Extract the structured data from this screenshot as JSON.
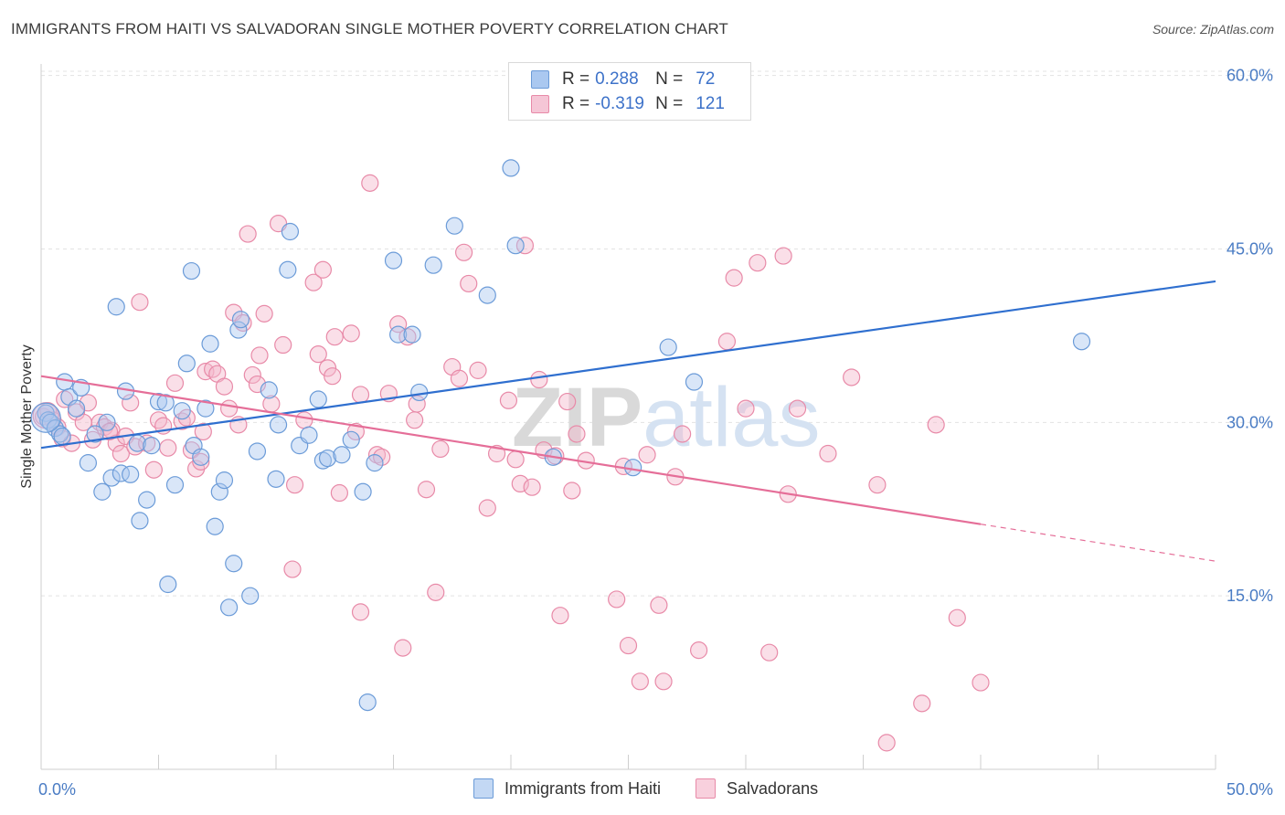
{
  "title": "IMMIGRANTS FROM HAITI VS SALVADORAN SINGLE MOTHER POVERTY CORRELATION CHART",
  "source": "Source: ZipAtlas.com",
  "watermark": "ZIPatlas",
  "legend": {
    "rows": [
      {
        "r_label": "R =",
        "r_value": "0.288",
        "n_label": "N =",
        "n_value": "72"
      },
      {
        "r_label": "R =",
        "r_value": "-0.319",
        "n_label": "N =",
        "n_value": "121"
      }
    ]
  },
  "colors": {
    "blue_fill": "#aac8f0",
    "blue_stroke": "#6b9bd8",
    "blue_line": "#2f6fcf",
    "pink_fill": "#f5b8cc",
    "pink_stroke": "#e88aa8",
    "pink_line": "#e56e98",
    "grid": "#e3e3e3",
    "tick_label": "#4a7cc4"
  },
  "chart_data": {
    "type": "scatter",
    "xlabel": "",
    "ylabel": "Single Mother Poverty",
    "x_tick_labels": [
      "0.0%",
      "50.0%"
    ],
    "y_tick_labels": [
      "60.0%",
      "45.0%",
      "30.0%",
      "15.0%"
    ],
    "y_ticks": [
      60,
      45,
      30,
      15
    ],
    "xlim": [
      0,
      50
    ],
    "ylim": [
      0,
      61
    ],
    "grid": true,
    "series": [
      {
        "name": "Immigrants from Haiti",
        "color": "#6b9bd8",
        "trend": {
          "x0": 0,
          "y0": 27.8,
          "x1": 50,
          "y1": 42.2,
          "dashed_from": 50
        },
        "points": [
          [
            0.2,
            30.8
          ],
          [
            0.3,
            30.2
          ],
          [
            0.4,
            30.0
          ],
          [
            0.6,
            29.5
          ],
          [
            0.8,
            29.0
          ],
          [
            0.9,
            28.8
          ],
          [
            1.0,
            33.5
          ],
          [
            1.2,
            32.2
          ],
          [
            1.5,
            31.2
          ],
          [
            1.7,
            33.0
          ],
          [
            2.0,
            26.5
          ],
          [
            2.3,
            29.0
          ],
          [
            2.6,
            24.0
          ],
          [
            2.8,
            30.0
          ],
          [
            3.0,
            25.2
          ],
          [
            3.2,
            40.0
          ],
          [
            3.4,
            25.6
          ],
          [
            3.6,
            32.7
          ],
          [
            3.8,
            25.5
          ],
          [
            4.1,
            28.2
          ],
          [
            4.2,
            21.5
          ],
          [
            4.5,
            23.3
          ],
          [
            4.7,
            28.0
          ],
          [
            5.0,
            31.8
          ],
          [
            5.3,
            31.7
          ],
          [
            5.4,
            16.0
          ],
          [
            5.7,
            24.6
          ],
          [
            6.0,
            31.0
          ],
          [
            6.2,
            35.1
          ],
          [
            6.4,
            43.1
          ],
          [
            6.5,
            28.0
          ],
          [
            6.8,
            27.0
          ],
          [
            7.0,
            31.2
          ],
          [
            7.2,
            36.8
          ],
          [
            7.4,
            21.0
          ],
          [
            7.6,
            24.0
          ],
          [
            7.8,
            25.0
          ],
          [
            8.0,
            14.0
          ],
          [
            8.2,
            17.8
          ],
          [
            8.4,
            38.0
          ],
          [
            8.5,
            38.9
          ],
          [
            8.9,
            15.0
          ],
          [
            9.2,
            27.5
          ],
          [
            9.7,
            32.8
          ],
          [
            10.0,
            25.1
          ],
          [
            10.1,
            29.8
          ],
          [
            10.5,
            43.2
          ],
          [
            10.6,
            46.5
          ],
          [
            11.0,
            28.0
          ],
          [
            11.4,
            28.9
          ],
          [
            11.8,
            32.0
          ],
          [
            12.0,
            26.7
          ],
          [
            12.2,
            26.9
          ],
          [
            12.8,
            27.2
          ],
          [
            13.2,
            28.5
          ],
          [
            13.7,
            24.0
          ],
          [
            13.9,
            5.8
          ],
          [
            14.2,
            26.5
          ],
          [
            15.0,
            44.0
          ],
          [
            15.2,
            37.6
          ],
          [
            15.8,
            37.6
          ],
          [
            16.1,
            32.6
          ],
          [
            16.7,
            43.6
          ],
          [
            17.6,
            47.0
          ],
          [
            19.0,
            41.0
          ],
          [
            20.0,
            52.0
          ],
          [
            20.2,
            45.3
          ],
          [
            21.8,
            27.0
          ],
          [
            25.2,
            26.1
          ],
          [
            26.7,
            36.5
          ],
          [
            27.8,
            33.5
          ],
          [
            44.3,
            37.0
          ]
        ]
      },
      {
        "name": "Salvadorans",
        "color": "#e88aa8",
        "trend": {
          "x0": 0,
          "y0": 34.0,
          "x1": 50,
          "y1": 18.0,
          "dashed_from": 40
        },
        "points": [
          [
            0.1,
            30.5
          ],
          [
            0.3,
            31.0
          ],
          [
            0.5,
            30.2
          ],
          [
            0.7,
            29.6
          ],
          [
            0.9,
            28.6
          ],
          [
            1.0,
            32.0
          ],
          [
            1.3,
            28.2
          ],
          [
            1.5,
            30.9
          ],
          [
            1.8,
            30.0
          ],
          [
            2.0,
            31.7
          ],
          [
            2.2,
            28.5
          ],
          [
            2.5,
            30.0
          ],
          [
            2.7,
            29.6
          ],
          [
            3.0,
            29.3
          ],
          [
            3.2,
            28.2
          ],
          [
            3.4,
            27.3
          ],
          [
            3.6,
            28.8
          ],
          [
            3.8,
            31.7
          ],
          [
            4.0,
            27.9
          ],
          [
            4.2,
            40.4
          ],
          [
            4.5,
            28.2
          ],
          [
            4.8,
            25.9
          ],
          [
            5.0,
            30.2
          ],
          [
            5.2,
            29.7
          ],
          [
            5.4,
            27.8
          ],
          [
            5.7,
            33.4
          ],
          [
            6.0,
            30.1
          ],
          [
            6.2,
            30.4
          ],
          [
            6.4,
            27.6
          ],
          [
            6.6,
            26.0
          ],
          [
            6.9,
            29.2
          ],
          [
            7.0,
            34.4
          ],
          [
            7.3,
            34.6
          ],
          [
            7.5,
            34.2
          ],
          [
            7.8,
            33.1
          ],
          [
            8.0,
            31.2
          ],
          [
            8.2,
            39.5
          ],
          [
            8.4,
            29.8
          ],
          [
            8.6,
            38.6
          ],
          [
            8.8,
            46.3
          ],
          [
            9.0,
            34.1
          ],
          [
            9.2,
            33.3
          ],
          [
            9.5,
            39.4
          ],
          [
            9.8,
            31.6
          ],
          [
            10.1,
            47.2
          ],
          [
            10.3,
            36.7
          ],
          [
            10.7,
            17.3
          ],
          [
            10.8,
            24.6
          ],
          [
            11.2,
            30.2
          ],
          [
            11.6,
            42.1
          ],
          [
            11.8,
            35.9
          ],
          [
            12.0,
            43.2
          ],
          [
            12.2,
            34.7
          ],
          [
            12.5,
            37.4
          ],
          [
            12.7,
            23.9
          ],
          [
            13.2,
            37.7
          ],
          [
            13.4,
            29.2
          ],
          [
            13.6,
            32.4
          ],
          [
            14.0,
            50.7
          ],
          [
            14.3,
            27.2
          ],
          [
            14.5,
            27.0
          ],
          [
            14.8,
            32.5
          ],
          [
            15.2,
            38.5
          ],
          [
            15.6,
            37.4
          ],
          [
            15.9,
            30.2
          ],
          [
            16.0,
            31.6
          ],
          [
            16.4,
            24.2
          ],
          [
            16.8,
            15.3
          ],
          [
            17.0,
            27.7
          ],
          [
            17.5,
            34.8
          ],
          [
            17.8,
            33.8
          ],
          [
            18.0,
            44.7
          ],
          [
            18.2,
            42.0
          ],
          [
            18.6,
            34.5
          ],
          [
            19.0,
            22.6
          ],
          [
            19.4,
            27.3
          ],
          [
            19.9,
            31.9
          ],
          [
            20.2,
            26.8
          ],
          [
            20.4,
            24.7
          ],
          [
            20.6,
            45.3
          ],
          [
            20.9,
            24.4
          ],
          [
            21.2,
            33.7
          ],
          [
            21.4,
            27.6
          ],
          [
            21.9,
            27.1
          ],
          [
            22.1,
            13.3
          ],
          [
            22.4,
            31.8
          ],
          [
            22.6,
            24.1
          ],
          [
            22.8,
            29.0
          ],
          [
            23.2,
            26.7
          ],
          [
            24.5,
            14.7
          ],
          [
            24.8,
            26.2
          ],
          [
            25.0,
            10.7
          ],
          [
            25.5,
            7.6
          ],
          [
            25.8,
            27.2
          ],
          [
            26.3,
            14.2
          ],
          [
            26.5,
            7.6
          ],
          [
            27.0,
            25.3
          ],
          [
            27.3,
            29.0
          ],
          [
            28.0,
            10.3
          ],
          [
            29.2,
            37.0
          ],
          [
            29.5,
            42.5
          ],
          [
            30.0,
            31.2
          ],
          [
            30.5,
            43.8
          ],
          [
            31.0,
            10.1
          ],
          [
            31.6,
            44.4
          ],
          [
            31.8,
            23.8
          ],
          [
            32.2,
            31.2
          ],
          [
            33.5,
            27.3
          ],
          [
            34.5,
            33.9
          ],
          [
            35.6,
            24.6
          ],
          [
            37.5,
            5.7
          ],
          [
            38.1,
            29.8
          ],
          [
            39.0,
            13.1
          ],
          [
            40.0,
            7.5
          ],
          [
            15.4,
            10.5
          ],
          [
            13.6,
            13.6
          ],
          [
            12.4,
            34.0
          ],
          [
            9.3,
            35.8
          ],
          [
            6.8,
            26.6
          ],
          [
            2.9,
            29.2
          ],
          [
            36.0,
            2.3
          ]
        ]
      }
    ]
  }
}
